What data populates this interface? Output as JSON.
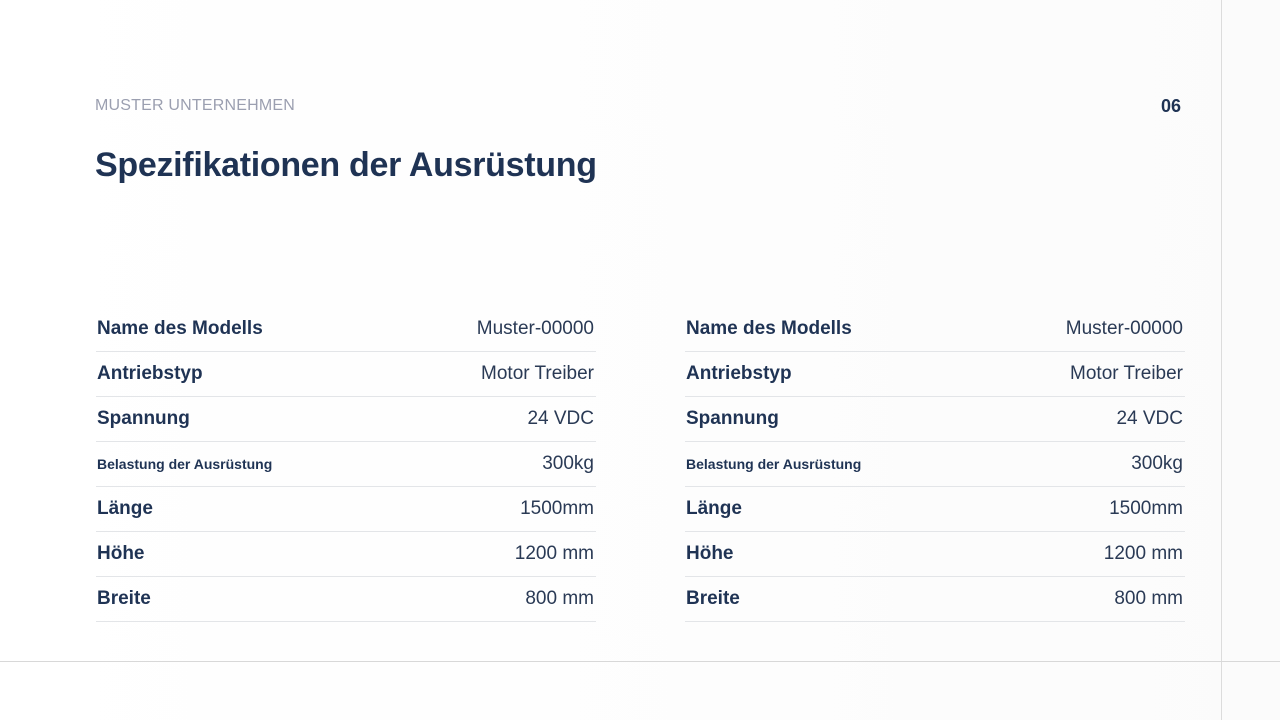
{
  "header": {
    "company": "MUSTER UNTERNEHMEN",
    "page_number": "06",
    "title": "Spezifikationen der Ausrüstung"
  },
  "tables": [
    {
      "rows": [
        {
          "label": "Name des Modells",
          "value": "Muster-00000"
        },
        {
          "label": "Antriebstyp",
          "value": "Motor Treiber"
        },
        {
          "label": "Spannung",
          "value": "24 VDC"
        },
        {
          "label": "Belastung der Ausrüstung",
          "value": "300kg"
        },
        {
          "label": "Länge",
          "value": "1500mm"
        },
        {
          "label": "Höhe",
          "value": "1200 mm"
        },
        {
          "label": "Breite",
          "value": "800 mm"
        }
      ]
    },
    {
      "rows": [
        {
          "label": "Name des Modells",
          "value": "Muster-00000"
        },
        {
          "label": "Antriebstyp",
          "value": "Motor Treiber"
        },
        {
          "label": "Spannung",
          "value": "24 VDC"
        },
        {
          "label": "Belastung der Ausrüstung",
          "value": "300kg"
        },
        {
          "label": "Länge",
          "value": "1500mm"
        },
        {
          "label": "Höhe",
          "value": "1200 mm"
        },
        {
          "label": "Breite",
          "value": "800 mm"
        }
      ]
    }
  ],
  "colors": {
    "primary_text": "#1f3354",
    "muted_text": "#9b9fb0",
    "divider": "#e3e5e8"
  }
}
